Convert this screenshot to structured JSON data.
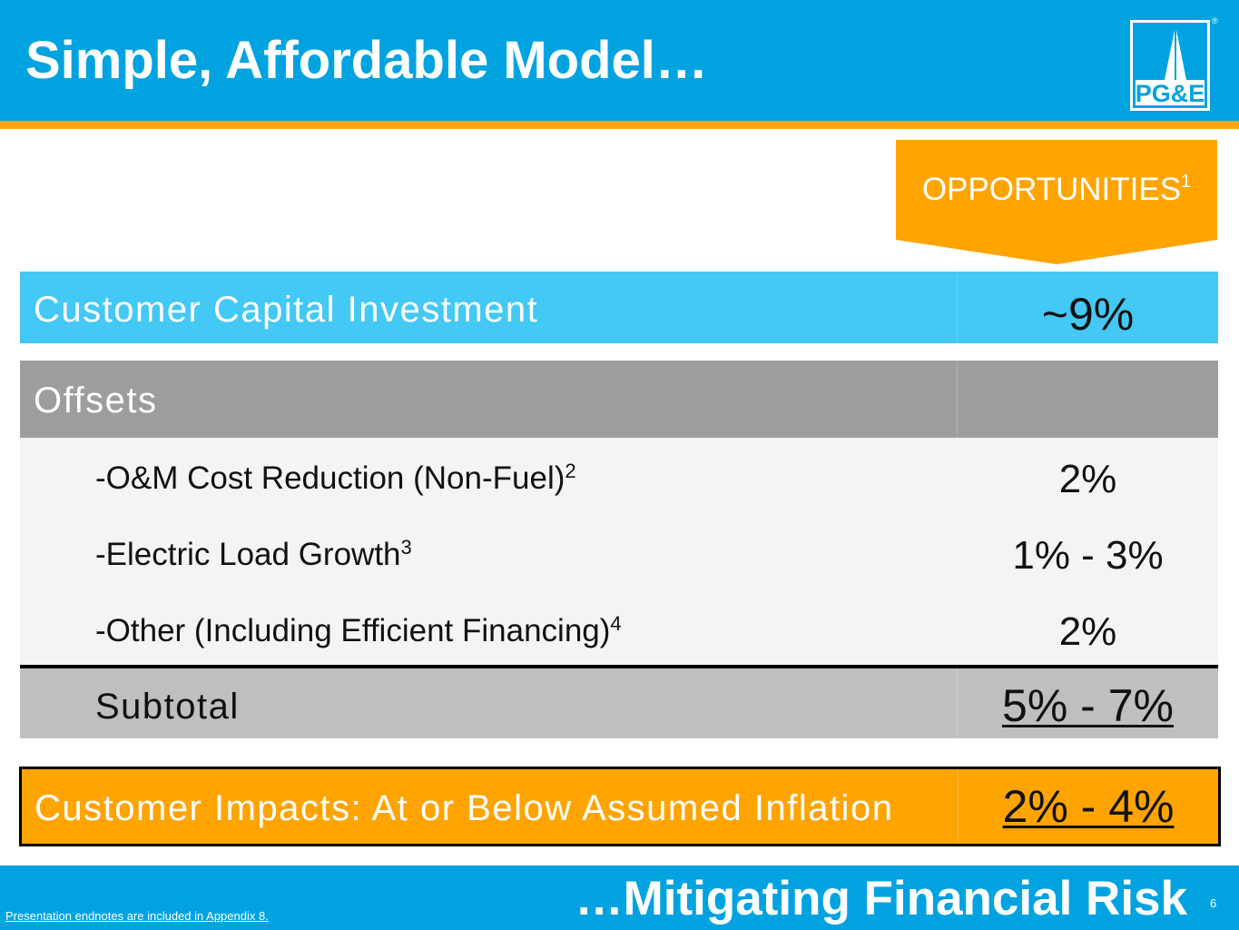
{
  "header": {
    "title": "Simple, Affordable Model…",
    "logo_text": "PG&E",
    "registered_mark": "®"
  },
  "opportunities": {
    "label": "OPPORTUNITIES",
    "footnote": "1"
  },
  "table": {
    "customer_capital": {
      "label": "Customer Capital Investment",
      "value": "~9%"
    },
    "offsets": {
      "label": "Offsets"
    },
    "items": [
      {
        "label": "-O&M Cost Reduction (Non-Fuel)",
        "footnote": "2",
        "value": "2%"
      },
      {
        "label": "-Electric Load Growth",
        "footnote": "3",
        "value": "1% - 3%"
      },
      {
        "label": "-Other (Including Efficient Financing)",
        "footnote": "4",
        "value": "2%"
      }
    ],
    "subtotal": {
      "label": "Subtotal",
      "value": "5% - 7%"
    },
    "customer_impacts": {
      "label": "Customer Impacts: At or Below Assumed Inflation",
      "value": "2% - 4%"
    }
  },
  "footer": {
    "title": "…Mitigating Financial Risk",
    "page_number": "6",
    "endnote_link": "Presentation endnotes are included in Appendix 8."
  },
  "colors": {
    "brand_blue": "#00a3e0",
    "light_blue": "#44c8f5",
    "orange": "#ffa400",
    "gray": "#9d9d9d"
  }
}
